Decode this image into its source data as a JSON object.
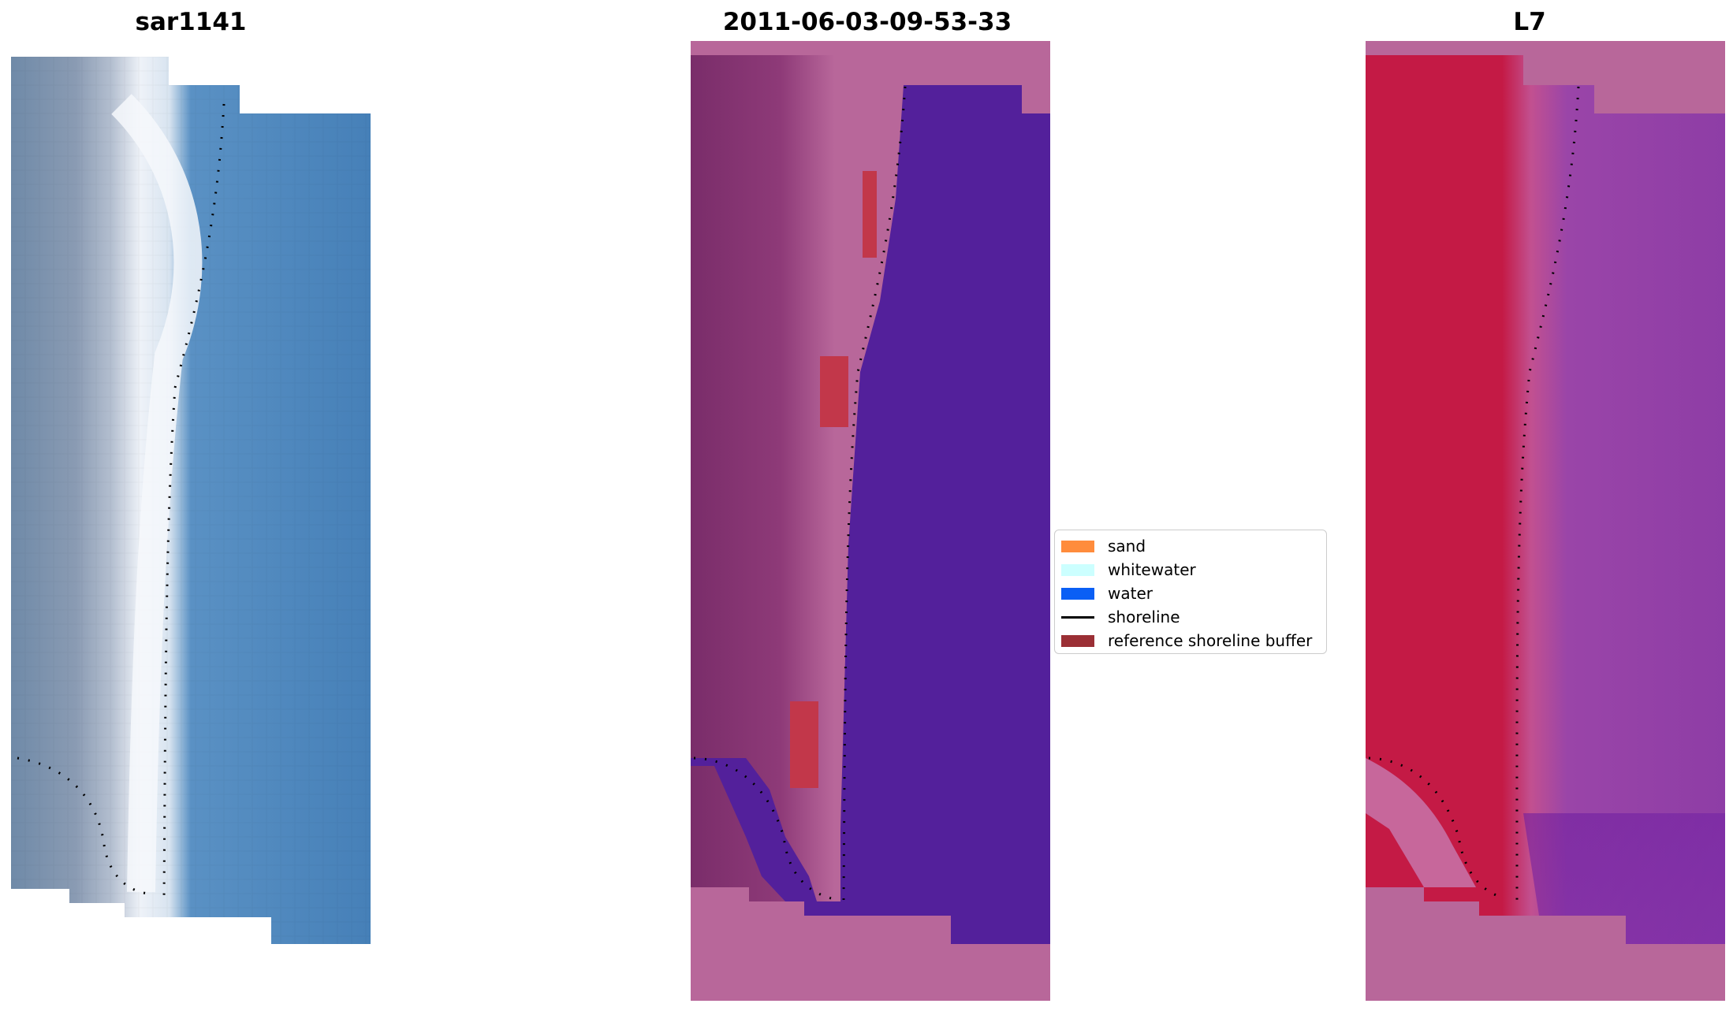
{
  "panels": [
    {
      "title": "sar1141"
    },
    {
      "title": "2011-06-03-09-53-33"
    },
    {
      "title": "L7"
    }
  ],
  "legend": {
    "items": [
      {
        "label": "sand",
        "color": "#ff8c3c"
      },
      {
        "label": "whitewater",
        "color": "#ccffff"
      },
      {
        "label": "water",
        "color": "#0a5ff5"
      },
      {
        "label": "shoreline",
        "color": "#000000"
      },
      {
        "label": "reference shoreline buffer",
        "color": "#9b2f35"
      }
    ]
  },
  "colors": {
    "rgb_land": "#7f93ad",
    "rgb_surf": "#e8eef6",
    "rgb_sea": "#4a85be",
    "class_pink": "#b8679a",
    "class_water": "#53209b",
    "class_buffer": "#c2374a",
    "index_red": "#c41a45",
    "index_purple": "#8e3da6"
  }
}
